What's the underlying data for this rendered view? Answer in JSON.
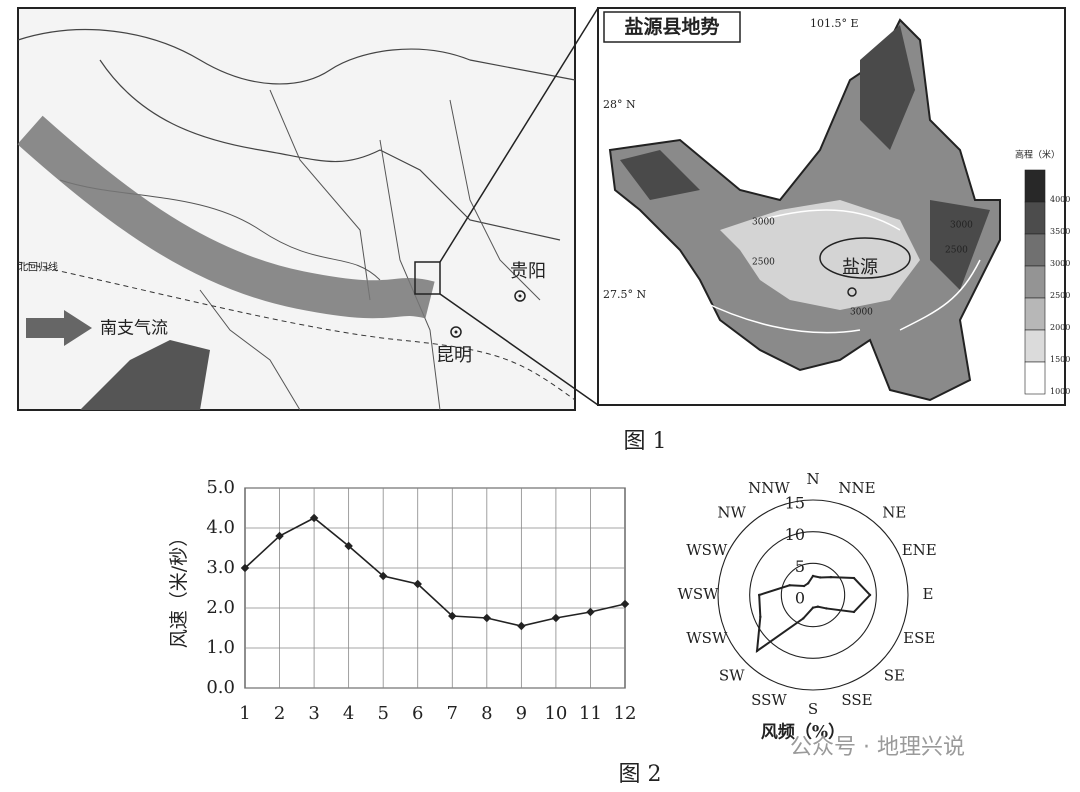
{
  "figure1": {
    "left_map": {
      "tropic": "北回归线",
      "airflow": "南支气流",
      "cities": [
        "贵阳",
        "昆明"
      ]
    },
    "right_map": {
      "title": "盐源县地势",
      "lon": "101.5° E",
      "lats": [
        "28° N",
        "27.5° N"
      ],
      "county": "盐源",
      "contours": [
        "3000",
        "2500",
        "3000",
        "2500",
        "3000"
      ],
      "legend": {
        "title": "高程（米）",
        "levels": [
          4000,
          3500,
          3000,
          2500,
          2000,
          1500,
          1000
        ]
      }
    },
    "caption": "图 1"
  },
  "caption2": "图 2",
  "watermark": "公众号 · 地理兴说",
  "chart_data": [
    {
      "type": "line",
      "ylabel": "风速（米/秒）",
      "categories": [
        "1",
        "2",
        "3",
        "4",
        "5",
        "6",
        "7",
        "8",
        "9",
        "10",
        "11",
        "12"
      ],
      "values": [
        3.0,
        3.8,
        4.25,
        3.55,
        2.8,
        2.6,
        1.8,
        1.75,
        1.55,
        1.75,
        1.9,
        2.1
      ],
      "color": "#222222",
      "ylim": [
        0,
        5
      ],
      "yticks": [
        {
          "value": 0,
          "label": "0.0"
        },
        {
          "value": 1,
          "label": "1.0"
        },
        {
          "value": 2,
          "label": "2.0"
        },
        {
          "value": 3,
          "label": "3.0"
        },
        {
          "value": 4,
          "label": "4.0"
        },
        {
          "value": 5,
          "label": "5.0"
        }
      ],
      "grid": true
    },
    {
      "type": "radar",
      "xlabel": "风频（%）",
      "categories": [
        "N",
        "NNE",
        "NE",
        "ENE",
        "E",
        "ESE",
        "SE",
        "SSE",
        "S",
        "SSW",
        "SW",
        "WSW",
        "WSW",
        "WSW",
        "NW",
        "NNW"
      ],
      "values": [
        3,
        3,
        4,
        7,
        9,
        7,
        3,
        2,
        2,
        4,
        12.5,
        9,
        8.5,
        4,
        2,
        2
      ],
      "color": "#222222",
      "rlim": [
        0,
        15
      ],
      "rticks": [
        0,
        5,
        10,
        15
      ]
    }
  ]
}
